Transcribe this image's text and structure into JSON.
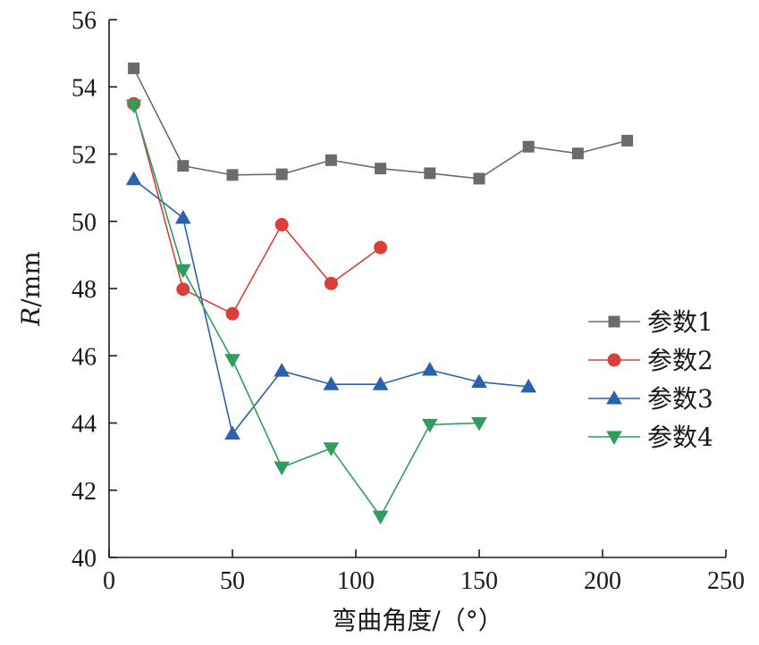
{
  "chart_data": {
    "type": "line",
    "xlabel": "弯曲角度/（°）",
    "ylabel_italic": "R",
    "ylabel_rest": "/mm",
    "xlim": [
      0,
      250
    ],
    "ylim": [
      40,
      56
    ],
    "xticks": [
      0,
      50,
      100,
      150,
      200,
      250
    ],
    "yticks": [
      40,
      42,
      44,
      46,
      48,
      50,
      52,
      54,
      56
    ],
    "grid": false,
    "legend_position": "right",
    "series": [
      {
        "name": "参数1",
        "color": "#6b6b6b",
        "marker": "square",
        "x": [
          10,
          30,
          50,
          70,
          90,
          110,
          130,
          150,
          170,
          190,
          210
        ],
        "y": [
          54.55,
          51.65,
          51.38,
          51.4,
          51.82,
          51.57,
          51.43,
          51.27,
          52.22,
          52.02,
          52.4
        ]
      },
      {
        "name": "参数2",
        "color": "#d9403a",
        "marker": "circle",
        "x": [
          10,
          30,
          50,
          70,
          90,
          110
        ],
        "y": [
          53.5,
          47.98,
          47.25,
          49.9,
          48.15,
          49.22
        ]
      },
      {
        "name": "参数3",
        "color": "#2a62ab",
        "marker": "triangle-up",
        "x": [
          10,
          30,
          50,
          70,
          90,
          110,
          130,
          150,
          170
        ],
        "y": [
          51.25,
          50.1,
          43.68,
          45.55,
          45.15,
          45.15,
          45.58,
          45.22,
          45.08
        ]
      },
      {
        "name": "参数4",
        "color": "#2e9e5e",
        "marker": "triangle-down",
        "x": [
          10,
          30,
          50,
          70,
          90,
          110,
          130,
          150
        ],
        "y": [
          53.45,
          48.55,
          45.88,
          42.68,
          43.25,
          41.22,
          43.95,
          44.0
        ]
      }
    ]
  }
}
